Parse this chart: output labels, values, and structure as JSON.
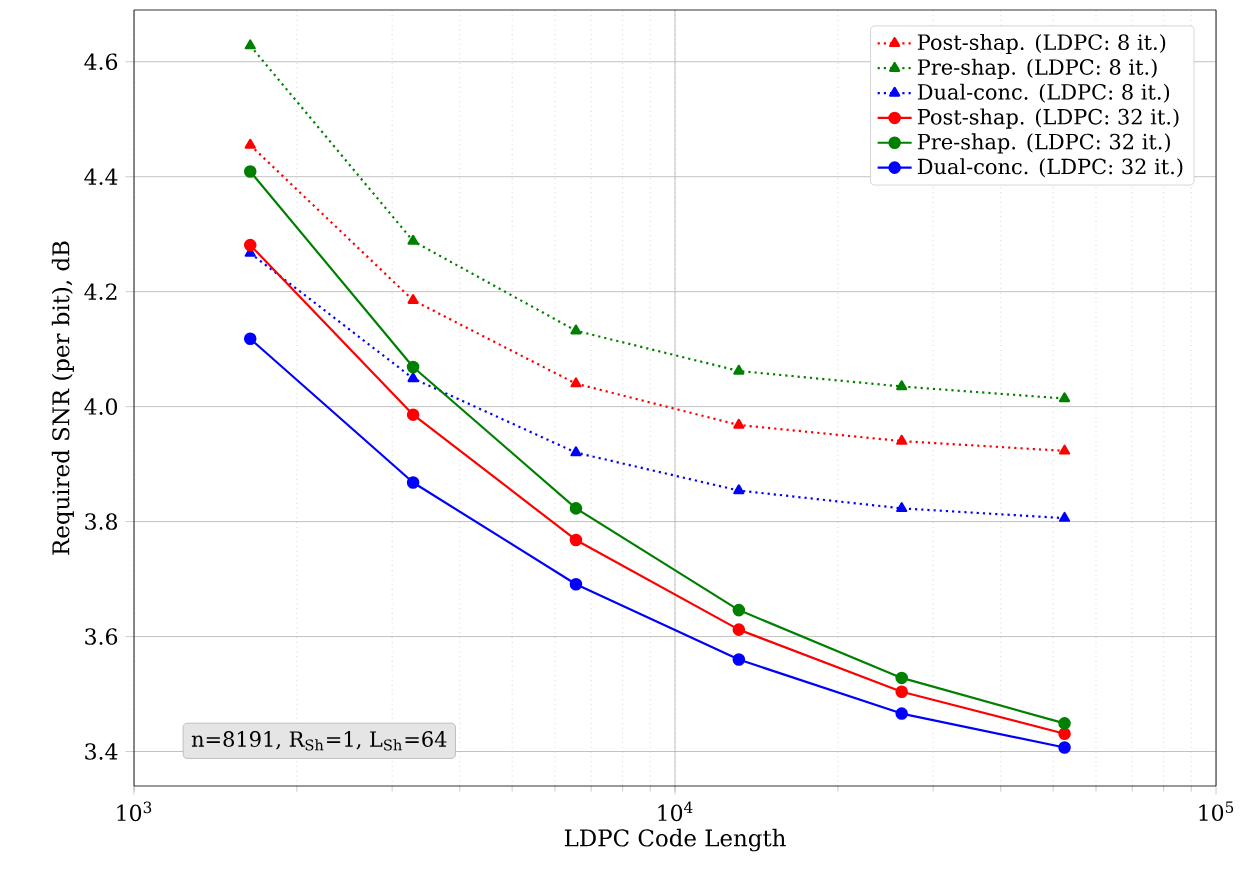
{
  "chart_data": {
    "type": "line",
    "xlabel": "LDPC Code Length",
    "ylabel": "Required SNR (per bit), dB",
    "log": "x",
    "grid": true,
    "legend": "top right",
    "x": [
      1640,
      3280,
      6560,
      13120,
      26240,
      52480
    ],
    "xlim": [
      1000,
      100000
    ],
    "xticks": [
      {
        "value": 1000,
        "label": "10$^{3}$"
      },
      {
        "value": 10000,
        "label": "10$^{4}$"
      },
      {
        "value": 100000,
        "label": "10$^{5}$"
      }
    ],
    "ylim": [
      3.34,
      4.69
    ],
    "yticks": [
      3.4,
      3.6,
      3.8,
      {
        "value": 4,
        "label": "4.0"
      },
      4.2,
      4.4,
      4.6
    ],
    "series": [
      {
        "name": "Post-shap. (LDPC: 8 it.)",
        "color": "#ff0000",
        "marker": "triangle",
        "line_style": "dotted",
        "values": [
          4.455,
          4.185,
          4.04,
          3.968,
          3.94,
          3.923
        ]
      },
      {
        "name": "Pre-shap. (LDPC: 8 it.)",
        "color": "#008000",
        "marker": "triangle",
        "line_style": "dotted",
        "values": [
          4.628,
          4.288,
          4.132,
          4.062,
          4.035,
          4.014
        ]
      },
      {
        "name": "Dual-conc. (LDPC: 8 it.)",
        "color": "#0000ff",
        "marker": "triangle",
        "line_style": "dotted",
        "values": [
          4.267,
          4.049,
          3.92,
          3.854,
          3.823,
          3.806
        ]
      },
      {
        "name": "Post-shap. (LDPC: 32 it.)",
        "color": "#ff0000",
        "marker": "circle",
        "line_style": "solid",
        "values": [
          4.281,
          3.986,
          3.768,
          3.612,
          3.504,
          3.431
        ]
      },
      {
        "name": "Pre-shap. (LDPC: 32 it.)",
        "color": "#008000",
        "marker": "circle",
        "line_style": "solid",
        "values": [
          4.409,
          4.069,
          3.823,
          3.646,
          3.528,
          3.449
        ]
      },
      {
        "name": "Dual-conc. (LDPC: 32 it.)",
        "color": "#0000ff",
        "marker": "circle",
        "line_style": "solid",
        "values": [
          4.118,
          3.868,
          3.691,
          3.56,
          3.466,
          3.407
        ]
      }
    ],
    "annotations": [
      "n=8191, R$_{Sh}$=1, L$_{Sh}$=64"
    ]
  }
}
